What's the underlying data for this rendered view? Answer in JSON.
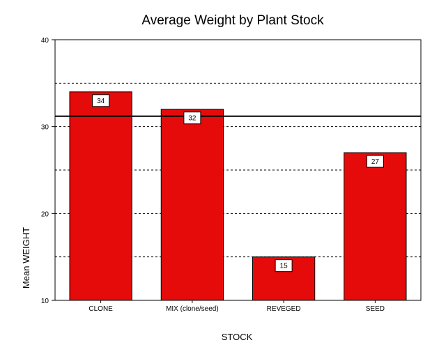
{
  "chart_data": {
    "type": "bar",
    "title": "Average Weight by Plant Stock",
    "xlabel": "STOCK",
    "ylabel": "Mean WEIGHT",
    "categories": [
      "CLONE",
      "MIX (clone/seed)",
      "REVEGED",
      "SEED"
    ],
    "values": [
      34,
      32,
      15,
      27
    ],
    "data_labels": [
      "34",
      "32",
      "15",
      "27"
    ],
    "ylim": [
      10,
      40
    ],
    "yticks": [
      10,
      20,
      30,
      40
    ],
    "ytick_labels": [
      "10",
      "20",
      "30",
      "40"
    ],
    "gridlines": [
      15,
      25,
      35
    ],
    "reference_line": 31.2,
    "grid": true,
    "colors": {
      "bar": "#e60b0b",
      "bar_edge": "#000000",
      "axis": "#000000",
      "grid": "#000000",
      "background": "#ffffff"
    }
  }
}
